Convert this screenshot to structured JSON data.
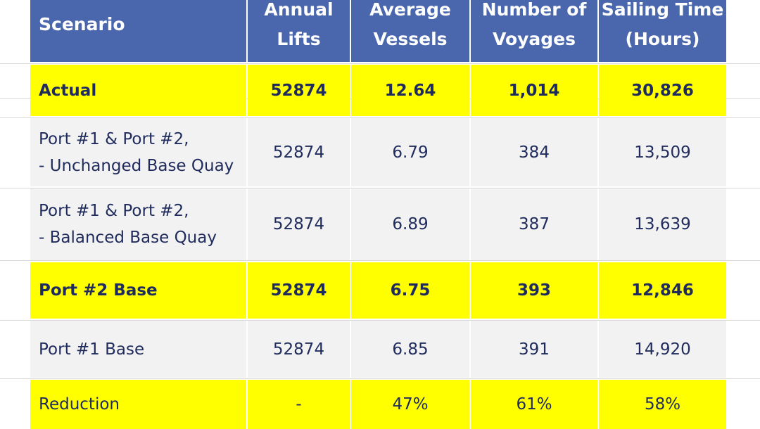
{
  "table": {
    "header": {
      "fill": "#4a67ad",
      "cells": [
        [
          "Scenario"
        ],
        [
          "Annual",
          "Lifts"
        ],
        [
          "Average",
          "Vessels"
        ],
        [
          "Number of",
          "Voyages"
        ],
        [
          "Sailing Time",
          "(Hours)"
        ]
      ]
    },
    "rows": [
      {
        "fill": "#ffff00",
        "bold": true,
        "cells": [
          [
            "Actual"
          ],
          [
            "52874"
          ],
          [
            "12.64"
          ],
          [
            "1,014"
          ],
          [
            "30,826"
          ]
        ]
      },
      {
        "fill": "#f2f2f2",
        "bold": false,
        "cells": [
          [
            "Port #1 & Port #2,",
            "- Unchanged Base Quay"
          ],
          [
            "52874"
          ],
          [
            "6.79"
          ],
          [
            "384"
          ],
          [
            "13,509"
          ]
        ]
      },
      {
        "fill": "#f2f2f2",
        "bold": false,
        "cells": [
          [
            "Port #1 & Port #2,",
            "- Balanced Base Quay"
          ],
          [
            "52874"
          ],
          [
            "6.89"
          ],
          [
            "387"
          ],
          [
            "13,639"
          ]
        ]
      },
      {
        "fill": "#ffff00",
        "bold": true,
        "cells": [
          [
            "Port #2 Base"
          ],
          [
            "52874"
          ],
          [
            "6.75"
          ],
          [
            "393"
          ],
          [
            "12,846"
          ]
        ]
      },
      {
        "fill": "#f2f2f2",
        "bold": false,
        "cells": [
          [
            "Port #1 Base"
          ],
          [
            "52874"
          ],
          [
            "6.85"
          ],
          [
            "391"
          ],
          [
            "14,920"
          ]
        ]
      },
      {
        "fill": "#ffff00",
        "bold": false,
        "cells": [
          [
            "Reduction"
          ],
          [
            "-"
          ],
          [
            "47%"
          ],
          [
            "61%"
          ],
          [
            "58%"
          ]
        ]
      }
    ]
  }
}
